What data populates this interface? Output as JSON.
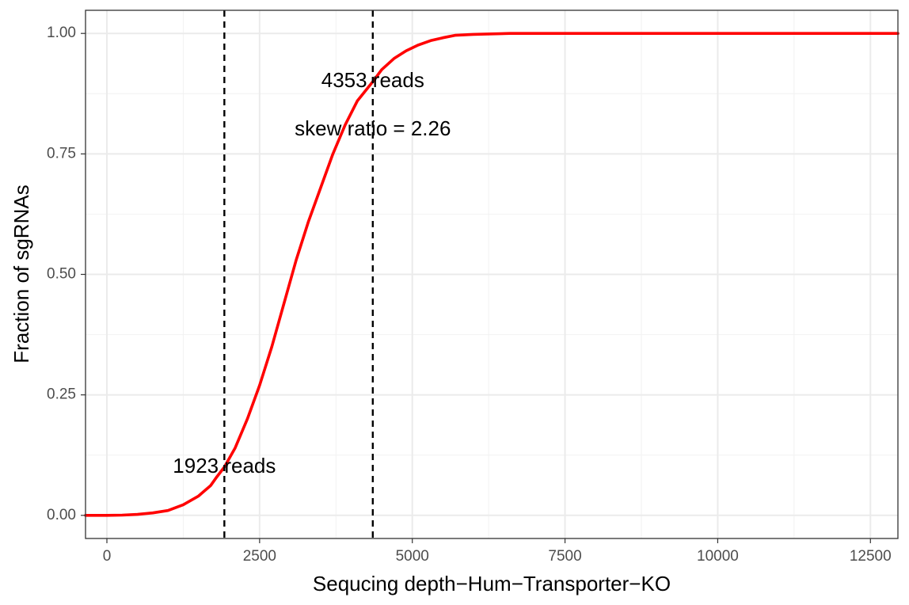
{
  "chart_data": {
    "type": "line",
    "xlabel": "Sequcing depth−Hum−Transporter−KO",
    "ylabel": "Fraction of sgRNAs",
    "xlim": [
      -350,
      12950
    ],
    "ylim": [
      -0.048,
      1.048
    ],
    "x_ticks": [
      0,
      2500,
      5000,
      7500,
      10000,
      12500
    ],
    "x_tick_labels": [
      "0",
      "2500",
      "5000",
      "7500",
      "10000",
      "12500"
    ],
    "y_ticks": [
      0,
      0.25,
      0.5,
      0.75,
      1.0
    ],
    "y_tick_labels": [
      "0.00",
      "0.25",
      "0.50",
      "0.75",
      "1.00"
    ],
    "grid": true,
    "series": [
      {
        "color": "#ff0000",
        "x": [
          -350,
          0,
          250,
          500,
          750,
          1000,
          1250,
          1500,
          1700,
          1800,
          1923,
          2100,
          2300,
          2500,
          2700,
          2900,
          3100,
          3300,
          3500,
          3700,
          3900,
          4100,
          4353,
          4500,
          4700,
          4900,
          5100,
          5300,
          5500,
          5700,
          6000,
          6300,
          6600,
          7000,
          8000,
          10000,
          12950
        ],
        "y": [
          0,
          0,
          0.0005,
          0.002,
          0.005,
          0.01,
          0.022,
          0.04,
          0.062,
          0.08,
          0.1,
          0.14,
          0.2,
          0.27,
          0.35,
          0.44,
          0.53,
          0.61,
          0.68,
          0.75,
          0.81,
          0.86,
          0.9,
          0.925,
          0.948,
          0.964,
          0.976,
          0.985,
          0.991,
          0.996,
          0.998,
          0.999,
          1.0,
          1.0,
          1.0,
          1.0,
          1.0
        ]
      }
    ],
    "vlines": [
      {
        "x": 1923,
        "style": "dashed",
        "color": "#000000"
      },
      {
        "x": 4353,
        "style": "dashed",
        "color": "#000000"
      }
    ],
    "annotations": [
      {
        "text": "1923 reads",
        "x": 1923,
        "y": 0.1
      },
      {
        "text": "4353 reads",
        "x": 4353,
        "y": 0.9
      },
      {
        "text": "skew ratio = 2.26",
        "x": 4353,
        "y": 0.8
      }
    ]
  }
}
